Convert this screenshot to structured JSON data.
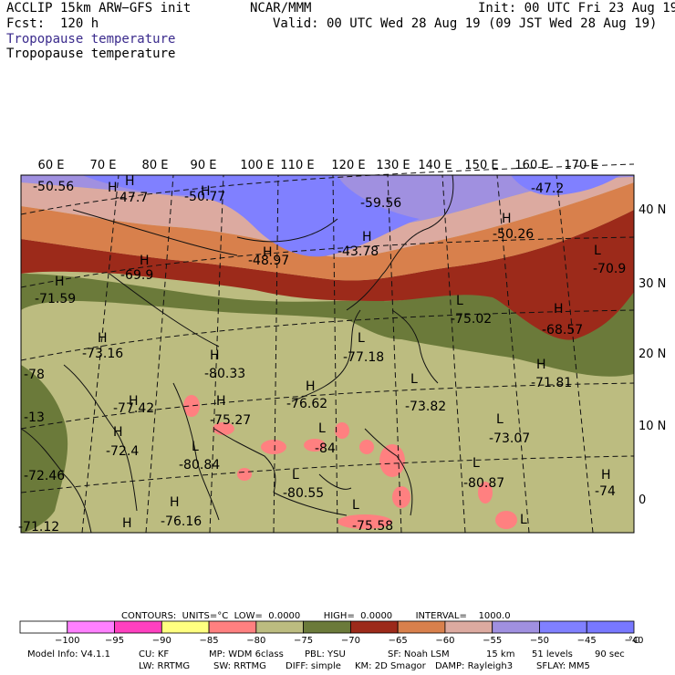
{
  "header": {
    "model": "ACCLIP 15km ARW−GFS init",
    "fcst": "Fcst:  120 h",
    "center": "NCAR/MMM",
    "init": "Init: 00 UTC Fri 23 Aug 19",
    "valid": "Valid: 00 UTC Wed 28 Aug 19 (09 JST Wed 28 Aug 19)",
    "field1": "Tropopause temperature",
    "field2": "Tropopause temperature"
  },
  "map": {
    "lon_labels": [
      "60 E",
      "70 E",
      "80 E",
      "90 E",
      "100 E",
      "110 E",
      "120 E",
      "130 E",
      "140 E",
      "150 E",
      "160 E",
      "170 E"
    ],
    "lat_labels": [
      "40 N",
      "30 N",
      "20 N",
      "10 N",
      "0"
    ],
    "centers": [
      {
        "t": "H"
      },
      {
        "t": "-50.56"
      },
      {
        "t": "H"
      },
      {
        "t": "-47.7"
      },
      {
        "t": "H"
      },
      {
        "t": "-50.77"
      },
      {
        "t": "-59.56"
      },
      {
        "t": "-47.2"
      },
      {
        "t": "H"
      },
      {
        "t": "-50.26"
      },
      {
        "t": "H"
      },
      {
        "t": "-43.78"
      },
      {
        "t": "H"
      },
      {
        "t": "-48.97"
      },
      {
        "t": "H"
      },
      {
        "t": "-69.9"
      },
      {
        "t": "H"
      },
      {
        "t": "-71.59"
      },
      {
        "t": "L"
      },
      {
        "t": "-70.9"
      },
      {
        "t": "L"
      },
      {
        "t": "-75.02"
      },
      {
        "t": "H"
      },
      {
        "t": "-68.57"
      },
      {
        "t": "H"
      },
      {
        "t": "-73.16"
      },
      {
        "t": "L"
      },
      {
        "t": "-77.18"
      },
      {
        "t": "-78"
      },
      {
        "t": "H"
      },
      {
        "t": "-80.33"
      },
      {
        "t": "H"
      },
      {
        "t": "-71.81"
      },
      {
        "t": "H"
      },
      {
        "t": "-76.62"
      },
      {
        "t": "L"
      },
      {
        "t": "-73.82"
      },
      {
        "t": "H"
      },
      {
        "t": "-77.42"
      },
      {
        "t": "H"
      },
      {
        "t": "-75.27"
      },
      {
        "t": "-13"
      },
      {
        "t": "L"
      },
      {
        "t": "-84"
      },
      {
        "t": "L"
      },
      {
        "t": "-73.07"
      },
      {
        "t": "H"
      },
      {
        "t": "-72.4"
      },
      {
        "t": "L"
      },
      {
        "t": "-80.84"
      },
      {
        "t": "L"
      },
      {
        "t": "-80.87"
      },
      {
        "t": "-72.46"
      },
      {
        "t": "L"
      },
      {
        "t": "-80.55"
      },
      {
        "t": "H"
      },
      {
        "t": "-74"
      },
      {
        "t": "H"
      },
      {
        "t": "-76.16"
      },
      {
        "t": "L"
      },
      {
        "t": "-75.58"
      },
      {
        "t": "-71.12"
      },
      {
        "t": "H"
      },
      {
        "t": "L"
      }
    ]
  },
  "legend": {
    "contours": "CONTOURS:  UNITS=°C  LOW=  0.0000        HIGH=  0.0000        INTERVAL=    1000.0",
    "ticks": [
      "−100",
      "−95",
      "−90",
      "−85",
      "−80",
      "−75",
      "−70",
      "−65",
      "−60",
      "−55",
      "−50",
      "−45",
      "−40"
    ],
    "unit": "°C",
    "colors": [
      "#ffffff",
      "#ff80ff",
      "#ff40c0",
      "#ffff80",
      "#ff8080",
      "#bcbc80",
      "#6b7a3a",
      "#9c2a1a",
      "#d8804c",
      "#dcaaa0",
      "#a090e0",
      "#8080ff",
      "#7878ff"
    ]
  },
  "footer": {
    "line1": [
      "Model Info: V4.1.1",
      "CU: KF",
      "MP: WDM 6class",
      "PBL: YSU",
      "SF: Noah LSM",
      "15 km",
      "51 levels",
      "90 sec"
    ],
    "line2": [
      "LW: RRTMG",
      "SW: RRTMG",
      "DIFF: simple",
      "KM: 2D Smagor",
      "DAMP: Rayleigh3",
      "SFLAY: MM5"
    ]
  }
}
